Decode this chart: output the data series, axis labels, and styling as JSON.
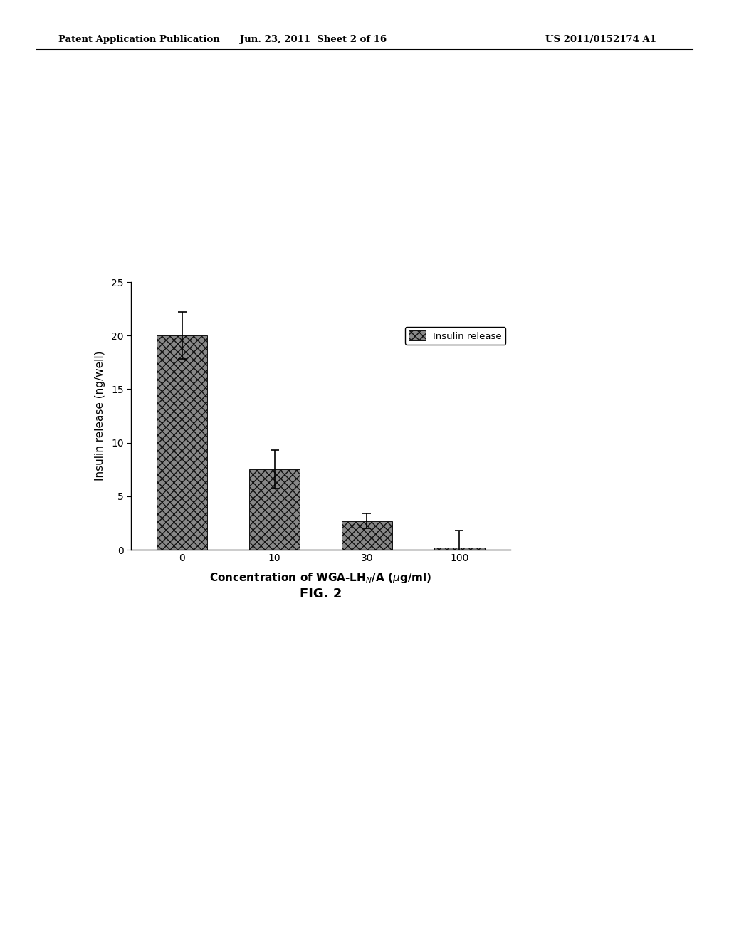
{
  "header_left": "Patent Application Publication",
  "header_center": "Jun. 23, 2011  Sheet 2 of 16",
  "header_right": "US 2011/0152174 A1",
  "categories": [
    "0",
    "10",
    "30",
    "100"
  ],
  "x_positions": [
    0,
    1,
    2,
    3
  ],
  "x_tick_labels": [
    "0",
    "10",
    "30",
    "100"
  ],
  "values": [
    20.0,
    7.5,
    2.7,
    0.2
  ],
  "errors": [
    2.2,
    1.8,
    0.7,
    1.6
  ],
  "ylim": [
    0,
    25
  ],
  "yticks": [
    0,
    5,
    10,
    15,
    20,
    25
  ],
  "ylabel": "Insulin release (ng/well)",
  "legend_label": "Insulin release",
  "figure_caption": "FIG. 2",
  "bar_color": "#888888",
  "bar_edgecolor": "#111111",
  "bar_width": 0.55,
  "background_color": "#ffffff",
  "hatch_pattern": "xxx",
  "capsize": 4,
  "error_linewidth": 1.2
}
